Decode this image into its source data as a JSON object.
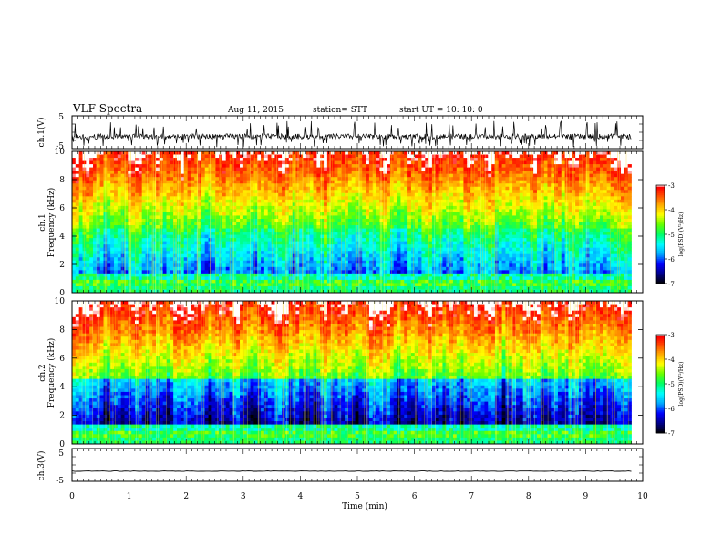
{
  "header": {
    "title": "VLF Spectra",
    "date": "Aug 11, 2015",
    "station": "station= STT",
    "start": "start  UT =   10: 10: 0"
  },
  "time_axis": {
    "label": "Time  (min)",
    "ticks": [
      "0",
      "1",
      "2",
      "3",
      "4",
      "5",
      "6",
      "7",
      "8",
      "9",
      "10"
    ]
  },
  "chart_data": [
    {
      "type": "line",
      "panel": "ch1-waveform",
      "ylabel": "ch.1(V)",
      "ytick_labels": [
        "5",
        "-5"
      ],
      "ylim": [
        -5,
        5
      ],
      "xlim": [
        0,
        10
      ],
      "series": [
        {
          "x_range_min": [
            0,
            9.8
          ],
          "baseline_v": -1.3,
          "spike_min_v": -4.5,
          "spike_max_v": 3.5
        }
      ]
    },
    {
      "type": "heatmap",
      "panel": "ch1-spectrogram",
      "ylabel": "ch.1\nFrequency  (kHz)",
      "ytick_labels": [
        "0",
        "2",
        "4",
        "6",
        "8",
        "10"
      ],
      "ylim": [
        0,
        10
      ],
      "xlim": [
        0,
        10
      ],
      "data_end_min": 9.8,
      "colorbar": {
        "label": "log(PSD)(V²/Hz)",
        "range": [
          -7,
          -3
        ],
        "tick_labels": [
          "-3",
          "-4",
          "-5",
          "-6",
          "-7"
        ]
      }
    },
    {
      "type": "heatmap",
      "panel": "ch2-spectrogram",
      "ylabel": "ch.2\nFrequency  (kHz)",
      "ytick_labels": [
        "0",
        "2",
        "4",
        "6",
        "8",
        "10"
      ],
      "ylim": [
        0,
        10
      ],
      "xlim": [
        0,
        10
      ],
      "data_end_min": 9.8,
      "colorbar": {
        "label": "log(PSD)(V²/Hz)",
        "range": [
          -7,
          -3
        ],
        "tick_labels": [
          "-3",
          "-4",
          "-5",
          "-6",
          "-7"
        ]
      }
    },
    {
      "type": "line",
      "panel": "ch3-waveform",
      "ylabel": "ch.3(V)",
      "ytick_labels": [
        "5",
        "-5"
      ],
      "ylim": [
        -5,
        5
      ],
      "xlim": [
        0,
        10
      ],
      "series": [
        {
          "x_range_min": [
            0,
            9.8
          ],
          "baseline_v": -1.9
        }
      ]
    }
  ],
  "palette": [
    "#000000",
    "#00008b",
    "#0000ff",
    "#00aaff",
    "#00ffff",
    "#00ff66",
    "#66ff00",
    "#ffff00",
    "#ffaa00",
    "#ff4400",
    "#ff0000",
    "#ffffff"
  ]
}
